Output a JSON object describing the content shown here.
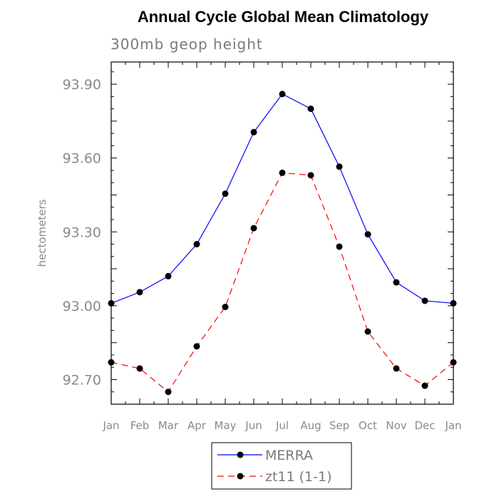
{
  "chart_data": {
    "type": "line",
    "title": "Annual Cycle Global Mean Climatology",
    "subtitle": "300mb geop height",
    "xlabel": "",
    "ylabel": "hectometers",
    "categories": [
      "Jan",
      "Feb",
      "Mar",
      "Apr",
      "May",
      "Jun",
      "Jul",
      "Aug",
      "Sep",
      "Oct",
      "Nov",
      "Dec",
      "Jan"
    ],
    "yticks": [
      "92.70",
      "93.00",
      "93.30",
      "93.60",
      "93.90"
    ],
    "ylim": [
      92.6,
      93.99
    ],
    "grid": false,
    "legend_position": "bottom-center",
    "series": [
      {
        "name": "MERRA",
        "color": "#0000ff",
        "line_style": "solid",
        "marker": "filled-circle",
        "values": [
          93.01,
          93.055,
          93.12,
          93.25,
          93.455,
          93.705,
          93.86,
          93.8,
          93.565,
          93.29,
          93.095,
          93.02,
          93.01
        ]
      },
      {
        "name": "zt11 (1-1)",
        "color": "#ff0000",
        "line_style": "dashed",
        "marker": "filled-circle",
        "values": [
          92.77,
          92.745,
          92.65,
          92.835,
          92.995,
          93.315,
          93.54,
          93.53,
          93.24,
          92.895,
          92.745,
          92.675,
          92.77
        ]
      }
    ]
  }
}
